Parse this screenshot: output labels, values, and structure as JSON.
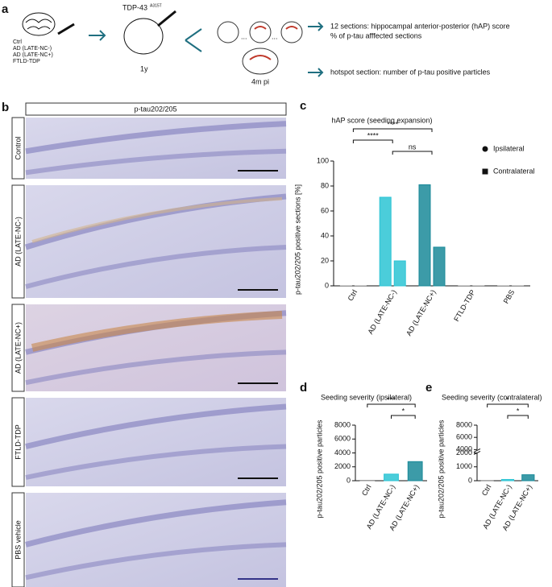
{
  "panel_labels": [
    "a",
    "b",
    "c",
    "d",
    "e"
  ],
  "schematic": {
    "groups": [
      "Ctrl",
      "AD (LATE-NC-)",
      "AD (LATE-NC+)",
      "FTLD-TDP"
    ],
    "model": "TDP-43",
    "model_sup": "A315T",
    "age": "1y",
    "ellipsis": "...",
    "timepoint": "4m pi",
    "readout_1": [
      "12 sections: hippocampal anterior-posterior (hAP) score",
      "% of p-tau afffected sections"
    ],
    "readout_2": "hotspot section: number of p-tau positive particles"
  },
  "micrographs": {
    "stain": "p-tau202/205",
    "rows": [
      "Control",
      "AD (LATE-NC-)",
      "AD (LATE-NC+)",
      "FTLD-TDP",
      "PBS vehicle"
    ]
  },
  "chart_data": [
    {
      "type": "bar",
      "title": "hAP score (seeding expansion)",
      "y_label": "p-tau202/205 positive sections [%]",
      "categories": [
        "Ctrl",
        "AD (LATE-NC-)",
        "AD (LATE-NC+)",
        "FTLD-TDP",
        "PBS"
      ],
      "colors": [
        "#9a9a9a",
        "#2cc4d4",
        "#1a8a99",
        "#9a9a9a",
        "#9a9a9a"
      ],
      "series": [
        {
          "name": "Ipsilateral",
          "marker": "circle",
          "values": [
            0,
            71,
            81,
            0,
            0
          ]
        },
        {
          "name": "Contralateral",
          "marker": "square",
          "values": [
            0,
            20,
            31,
            0,
            0
          ]
        }
      ],
      "ylim": [
        0,
        100
      ],
      "yticks": [
        0,
        20,
        40,
        60,
        80,
        100
      ],
      "significance": [
        {
          "label": "ns",
          "between": [
            "AD (LATE-NC-)",
            "AD (LATE-NC+)"
          ]
        },
        {
          "label": "****",
          "between": [
            "Ctrl",
            "AD (LATE-NC-)"
          ]
        },
        {
          "label": "****",
          "between": [
            "Ctrl",
            "AD (LATE-NC+)"
          ]
        }
      ]
    },
    {
      "type": "bar",
      "title": "Seeding severity (ipsilateral)",
      "y_label": "p-tau202/205 positive particles",
      "categories": [
        "Ctrl",
        "AD (LATE-NC-)",
        "AD (LATE-NC+)"
      ],
      "colors": [
        "#9a9a9a",
        "#2cc4d4",
        "#1a8a99"
      ],
      "values": [
        60,
        950,
        2750
      ],
      "ylim": [
        0,
        8000
      ],
      "yticks": [
        0,
        2000,
        4000,
        6000,
        8000
      ],
      "significance": [
        {
          "label": "*",
          "between": [
            "AD (LATE-NC-)",
            "AD (LATE-NC+)"
          ]
        },
        {
          "label": "***",
          "between": [
            "Ctrl",
            "AD (LATE-NC+)"
          ]
        }
      ]
    },
    {
      "type": "bar",
      "title": "Seeding severity (contralateral)",
      "y_label": "p-tau202/205 positive particles",
      "categories": [
        "Ctrl",
        "AD (LATE-NC-)",
        "AD (LATE-NC+)"
      ],
      "colors": [
        "#9a9a9a",
        "#2cc4d4",
        "#1a8a99"
      ],
      "values": [
        20,
        90,
        430
      ],
      "ylim": [
        0,
        8000
      ],
      "yticks": [
        0,
        1000,
        2000,
        4000,
        6000,
        8000
      ],
      "axis_break": [
        2000,
        4000
      ],
      "significance": [
        {
          "label": "*",
          "between": [
            "AD (LATE-NC-)",
            "AD (LATE-NC+)"
          ]
        },
        {
          "label": "*",
          "between": [
            "Ctrl",
            "AD (LATE-NC+)"
          ]
        }
      ]
    }
  ]
}
